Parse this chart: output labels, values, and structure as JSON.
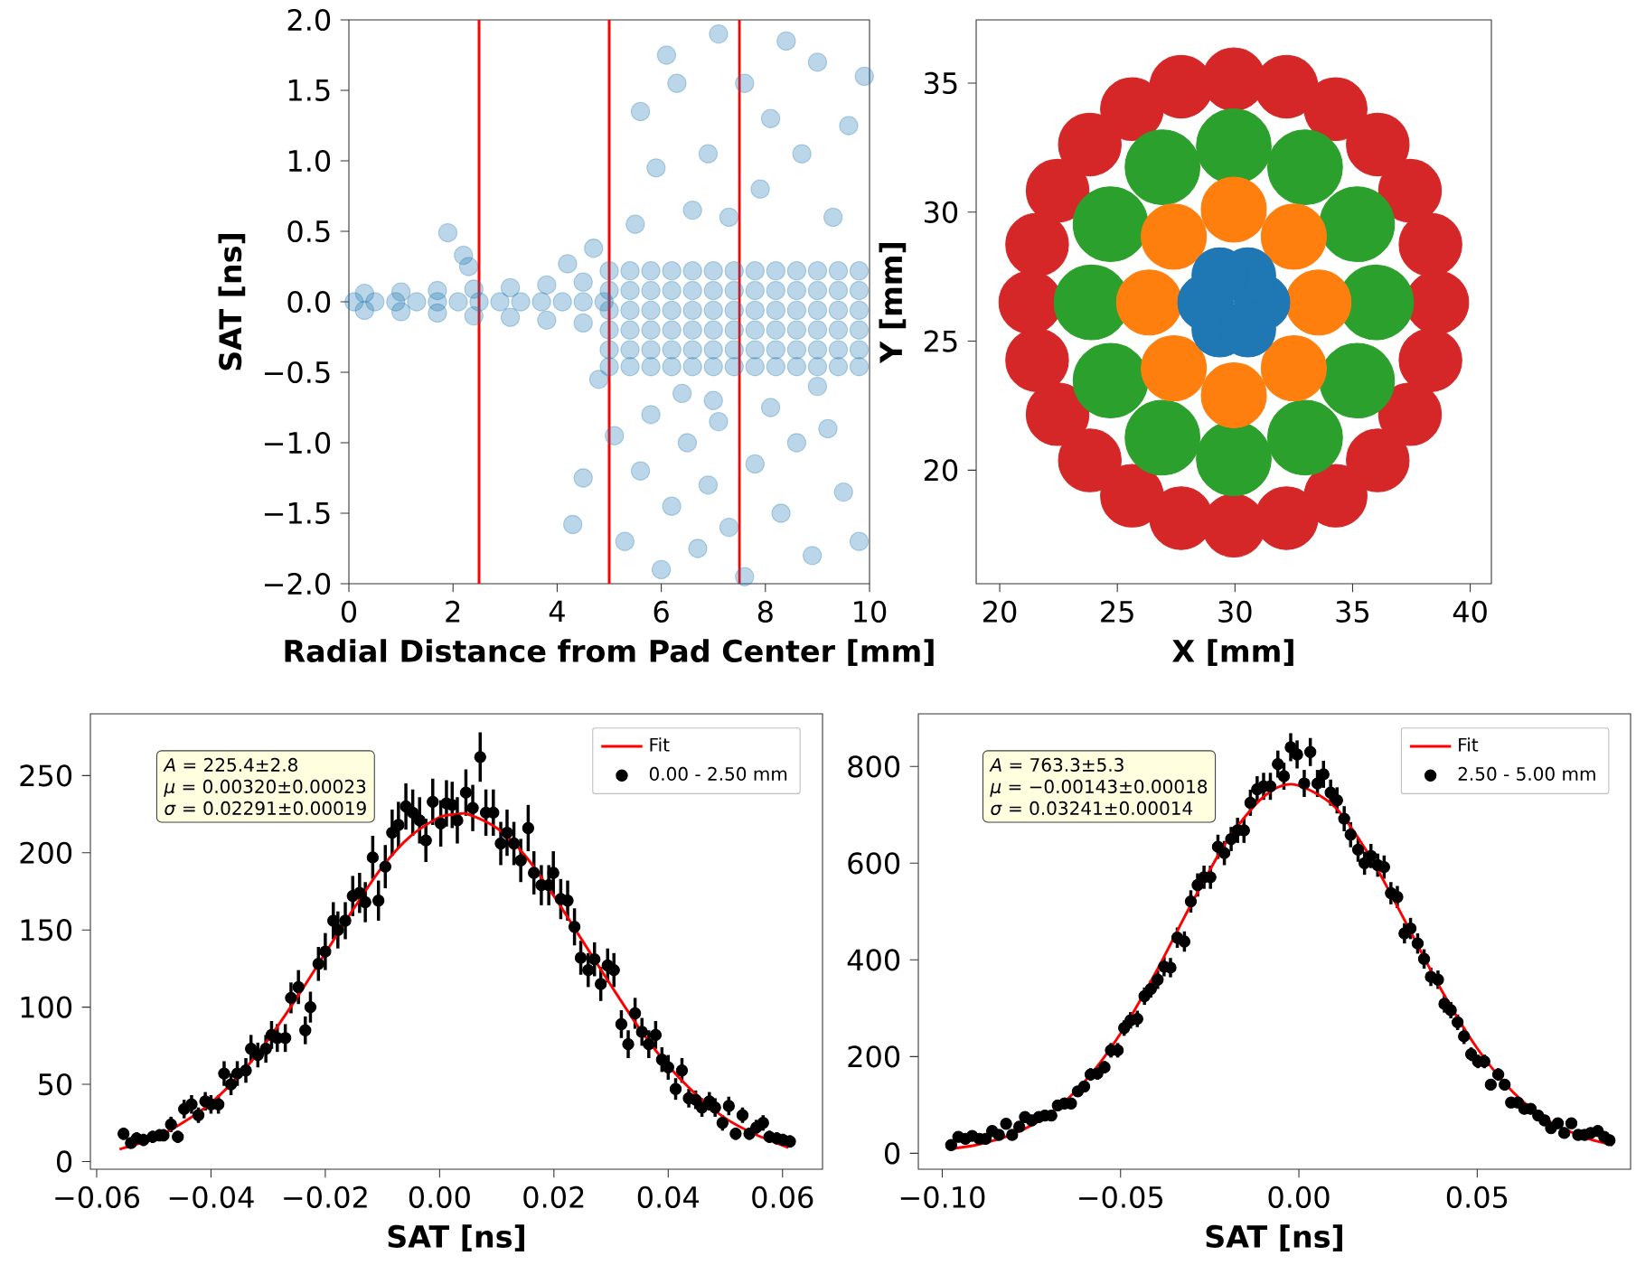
{
  "chart_data": [
    {
      "type": "scatter",
      "xlabel": "Radial Distance from Pad Center [mm]",
      "ylabel": "SAT [ns]",
      "marker": "circle",
      "xlim": [
        0,
        10
      ],
      "ylim": [
        -2,
        2
      ],
      "xticks": [
        0,
        2,
        4,
        6,
        8,
        10
      ],
      "yticks": [
        {
          "value": -2,
          "label": "−2.0"
        },
        {
          "value": -1.5,
          "label": "−1.5"
        },
        {
          "value": -1,
          "label": "−1.0"
        },
        {
          "value": -0.5,
          "label": "−0.5"
        },
        {
          "value": 0,
          "label": "0.0"
        },
        {
          "value": 0.5,
          "label": "0.5"
        },
        {
          "value": 1,
          "label": "1.0"
        },
        {
          "value": 1.5,
          "label": "1.5"
        },
        {
          "value": 2,
          "label": "2.0"
        }
      ],
      "ref_lines": [
        {
          "axis": "x",
          "value": 2.5,
          "color": "#ff0000"
        },
        {
          "axis": "x",
          "value": 5,
          "color": "#ff0000"
        },
        {
          "axis": "x",
          "value": 7.5,
          "color": "#ff0000"
        }
      ],
      "series": [
        {
          "color": "#1f77b4",
          "x": [
            0.1,
            0.5,
            0.9,
            1.3,
            1.7,
            2.1,
            2.5,
            2.9,
            3.3,
            3.7,
            4.1,
            4.5,
            4.9,
            0.3,
            1.0,
            1.7,
            2.4,
            3.1,
            3.8,
            4.5,
            0.3,
            1.0,
            1.7,
            2.4,
            3.1,
            3.8,
            4.5,
            1.9,
            2.3,
            2.2,
            4.2,
            4.7,
            4.3,
            4.5,
            4.8,
            5.0,
            5.4,
            5.8,
            6.2,
            6.6,
            7.0,
            7.4,
            7.8,
            8.2,
            8.6,
            9.0,
            9.4,
            9.8,
            5.0,
            5.4,
            5.8,
            6.2,
            6.6,
            7.0,
            7.4,
            7.8,
            8.2,
            8.6,
            9.0,
            9.4,
            9.8,
            5.0,
            5.4,
            5.8,
            6.2,
            6.6,
            7.0,
            7.4,
            7.8,
            8.2,
            8.6,
            9.0,
            9.4,
            9.8,
            5.0,
            5.4,
            5.8,
            6.2,
            6.6,
            7.0,
            7.4,
            7.8,
            8.2,
            8.6,
            9.0,
            9.4,
            9.8,
            5.0,
            5.4,
            5.8,
            6.2,
            6.6,
            7.0,
            7.4,
            7.8,
            8.2,
            8.6,
            9.0,
            9.4,
            9.8,
            5.0,
            5.4,
            5.8,
            6.2,
            6.6,
            7.0,
            7.4,
            7.8,
            8.2,
            8.6,
            9.0,
            9.4,
            9.8,
            5.5,
            5.6,
            5.9,
            6.1,
            6.3,
            6.6,
            6.9,
            7.1,
            7.3,
            7.6,
            7.9,
            8.1,
            8.4,
            8.7,
            9.0,
            9.3,
            9.6,
            9.9,
            5.1,
            5.3,
            5.6,
            5.8,
            6.0,
            6.2,
            6.5,
            6.7,
            6.9,
            7.1,
            7.3,
            7.6,
            7.8,
            8.1,
            8.3,
            8.6,
            8.9,
            9.2,
            9.5,
            9.8,
            6.4,
            7.0,
            9.0
          ],
          "values": [
            0,
            0,
            0,
            0,
            0,
            0,
            0,
            0,
            0,
            0,
            0,
            0,
            0,
            0.06,
            0.07,
            0.08,
            0.09,
            0.1,
            0.12,
            0.14,
            -0.06,
            -0.07,
            -0.08,
            -0.1,
            -0.11,
            -0.13,
            -0.15,
            0.49,
            0.25,
            0.33,
            0.27,
            0.38,
            -1.58,
            -1.25,
            -0.55,
            0.22,
            0.22,
            0.22,
            0.22,
            0.22,
            0.22,
            0.22,
            0.22,
            0.22,
            0.22,
            0.22,
            0.22,
            0.22,
            0.08,
            0.08,
            0.08,
            0.08,
            0.08,
            0.08,
            0.08,
            0.08,
            0.08,
            0.08,
            0.08,
            0.08,
            0.08,
            -0.06,
            -0.06,
            -0.06,
            -0.06,
            -0.06,
            -0.06,
            -0.06,
            -0.06,
            -0.06,
            -0.06,
            -0.06,
            -0.06,
            -0.06,
            -0.2,
            -0.2,
            -0.2,
            -0.2,
            -0.2,
            -0.2,
            -0.2,
            -0.2,
            -0.2,
            -0.2,
            -0.2,
            -0.2,
            -0.2,
            -0.34,
            -0.34,
            -0.34,
            -0.34,
            -0.34,
            -0.34,
            -0.34,
            -0.34,
            -0.34,
            -0.34,
            -0.34,
            -0.34,
            -0.34,
            -0.46,
            -0.46,
            -0.46,
            -0.46,
            -0.46,
            -0.46,
            -0.46,
            -0.46,
            -0.46,
            -0.46,
            -0.46,
            -0.46,
            -0.46,
            0.55,
            1.35,
            0.95,
            1.75,
            1.55,
            0.65,
            1.05,
            1.9,
            0.6,
            1.55,
            0.8,
            1.3,
            1.85,
            1.05,
            1.7,
            0.6,
            1.25,
            1.6,
            -0.95,
            -1.7,
            -1.2,
            -0.8,
            -1.9,
            -1.45,
            -1.0,
            -1.75,
            -1.3,
            -0.85,
            -1.6,
            -1.95,
            -1.15,
            -0.75,
            -1.5,
            -1.0,
            -1.8,
            -0.9,
            -1.35,
            -1.7,
            -0.65,
            -0.7,
            -0.6
          ]
        }
      ]
    },
    {
      "type": "scatter",
      "xlabel": "X [mm]",
      "ylabel": "Y [mm]",
      "marker": "circle",
      "xlim": [
        19.0,
        40.9
      ],
      "ylim": [
        15.6,
        37.45
      ],
      "xticks": [
        20,
        25,
        30,
        35,
        40
      ],
      "yticks": [
        20,
        25,
        30,
        35
      ],
      "series": [
        {
          "color": "#d62728",
          "x": [
            38.6,
            38.31,
            37.44,
            36.07,
            34.28,
            32.19,
            29.95,
            27.71,
            25.62,
            23.83,
            22.46,
            21.59,
            21.3,
            21.59,
            22.46,
            23.83,
            25.62,
            27.71,
            29.95,
            32.19,
            34.28,
            36.07,
            37.44,
            38.31
          ],
          "values": [
            26.5,
            28.74,
            30.83,
            32.62,
            33.99,
            34.86,
            35.15,
            34.86,
            33.99,
            32.62,
            30.83,
            28.74,
            26.5,
            24.26,
            22.17,
            20.38,
            19.01,
            18.14,
            17.85,
            18.14,
            19.01,
            20.38,
            22.17,
            24.26
          ]
        },
        {
          "color": "#2ca02c",
          "x": [
            36.0,
            35.19,
            32.98,
            29.95,
            26.92,
            24.71,
            23.9,
            24.71,
            26.92,
            29.95,
            32.98,
            35.19
          ],
          "values": [
            26.5,
            29.53,
            31.74,
            32.55,
            31.74,
            29.53,
            26.5,
            23.47,
            21.26,
            20.45,
            21.26,
            23.47
          ]
        },
        {
          "color": "#ff7f0e",
          "x": [
            33.55,
            32.5,
            29.95,
            27.4,
            26.35,
            27.4,
            29.95,
            32.5
          ],
          "values": [
            26.5,
            29.05,
            30.1,
            29.05,
            26.5,
            23.95,
            22.9,
            23.95
          ]
        },
        {
          "color": "#1f77b4",
          "x": [
            31.15,
            30.55,
            29.35,
            28.75,
            29.35,
            30.55
          ],
          "values": [
            26.5,
            27.54,
            27.54,
            26.5,
            25.46,
            25.46
          ]
        }
      ]
    },
    {
      "type": "scatter",
      "xlabel": "SAT [ns]",
      "legend": "top right",
      "xlim": [
        -0.0611,
        0.067
      ],
      "ylim": [
        -5,
        290
      ],
      "xticks": [
        {
          "value": -0.06,
          "label": "−0.06"
        },
        {
          "value": -0.04,
          "label": "−0.04"
        },
        {
          "value": -0.02,
          "label": "−0.02"
        },
        {
          "value": 0,
          "label": "0.00"
        },
        {
          "value": 0.02,
          "label": "0.02"
        },
        {
          "value": 0.04,
          "label": "0.04"
        },
        {
          "value": 0.06,
          "label": "0.06"
        }
      ],
      "yticks": [
        0,
        50,
        100,
        150,
        200,
        250
      ],
      "annotations": [
        "*A* = 225.4±2.8",
        "*μ* = 0.00320±0.00023",
        "*σ* = 0.02291±0.00019"
      ],
      "series": [
        {
          "name": "Fit",
          "type": "line",
          "color": "#ff0000",
          "x": [
            -0.056,
            -0.05,
            -0.045,
            -0.04,
            -0.035,
            -0.03,
            -0.025,
            -0.02,
            -0.015,
            -0.01,
            -0.005,
            0,
            0.0032,
            0.005,
            0.01,
            0.015,
            0.02,
            0.025,
            0.03,
            0.035,
            0.04,
            0.045,
            0.05,
            0.055,
            0.061
          ],
          "values": [
            8,
            15,
            25,
            38,
            56,
            79,
            106,
            135,
            164,
            191,
            211,
            223,
            225,
            225,
            216,
            198,
            172,
            143,
            114,
            86,
            62,
            43,
            28,
            18,
            9
          ]
        },
        {
          "name": "0.00 - 2.50 mm",
          "color": "#000000",
          "marker": "circle",
          "x": [
            -0.0553,
            -0.054,
            -0.053,
            -0.0518,
            -0.0502,
            -0.049,
            -0.0483,
            -0.047,
            -0.0458,
            -0.0447,
            -0.0434,
            -0.0422,
            -0.041,
            -0.04,
            -0.0387,
            -0.0377,
            -0.0365,
            -0.0354,
            -0.0339,
            -0.033,
            -0.0318,
            -0.0304,
            -0.0294,
            -0.0284,
            -0.027,
            -0.026,
            -0.0247,
            -0.0235,
            -0.0226,
            -0.0212,
            -0.02,
            -0.0186,
            -0.0178,
            -0.0165,
            -0.0152,
            -0.014,
            -0.013,
            -0.0117,
            -0.0107,
            -0.0095,
            -0.0083,
            -0.0072,
            -0.0059,
            -0.0047,
            -0.0035,
            -0.0024,
            -0.0012,
            0.0002,
            0.0012,
            0.0022,
            0.0031,
            0.0046,
            0.0058,
            0.0071,
            0.0081,
            0.0094,
            0.0107,
            0.0118,
            0.013,
            0.0142,
            0.0155,
            0.0165,
            0.0178,
            0.0191,
            0.0199,
            0.0212,
            0.0224,
            0.0236,
            0.0247,
            0.026,
            0.0271,
            0.0282,
            0.0294,
            0.0305,
            0.0318,
            0.033,
            0.0342,
            0.0354,
            0.0366,
            0.0378,
            0.0389,
            0.04,
            0.0413,
            0.0424,
            0.0436,
            0.0448,
            0.0459,
            0.0472,
            0.0482,
            0.0495,
            0.0506,
            0.0518,
            0.053,
            0.0542,
            0.0554,
            0.0566,
            0.0577,
            0.059,
            0.0601,
            0.0613
          ],
          "values": [
            18,
            12,
            15,
            14,
            16,
            17,
            17,
            24,
            16,
            34,
            37,
            30,
            39,
            37,
            37,
            57,
            50,
            57,
            59,
            73,
            69,
            73,
            82,
            80,
            80,
            106,
            113,
            85,
            100,
            128,
            136,
            156,
            150,
            156,
            172,
            174,
            168,
            197,
            169,
            191,
            213,
            218,
            230,
            226,
            221,
            208,
            233,
            219,
            232,
            231,
            221,
            239,
            229,
            262,
            226,
            226,
            206,
            213,
            206,
            195,
            216,
            187,
            179,
            179,
            187,
            170,
            169,
            152,
            132,
            124,
            131,
            115,
            127,
            124,
            89,
            76,
            96,
            84,
            76,
            82,
            66,
            61,
            47,
            59,
            41,
            40,
            35,
            39,
            35,
            25,
            36,
            18,
            30,
            18,
            22,
            25,
            16,
            15,
            14,
            13
          ],
          "errors": [
            4,
            3,
            4,
            4,
            4,
            4,
            4,
            5,
            4,
            6,
            6,
            5,
            6,
            6,
            6,
            8,
            7,
            8,
            8,
            9,
            8,
            9,
            9,
            9,
            9,
            10,
            11,
            9,
            10,
            11,
            12,
            12,
            12,
            12,
            13,
            13,
            13,
            14,
            13,
            14,
            15,
            15,
            15,
            15,
            15,
            14,
            15,
            15,
            15,
            15,
            15,
            15,
            15,
            16,
            15,
            15,
            14,
            15,
            14,
            14,
            15,
            14,
            13,
            13,
            14,
            13,
            13,
            12,
            11,
            11,
            11,
            11,
            11,
            11,
            9,
            9,
            10,
            9,
            9,
            9,
            8,
            8,
            7,
            8,
            6,
            6,
            6,
            6,
            6,
            5,
            6,
            4,
            5,
            4,
            5,
            5,
            4,
            4,
            4,
            4
          ]
        }
      ]
    },
    {
      "type": "scatter",
      "xlabel": "SAT [ns]",
      "legend": "top right",
      "xlim": [
        -0.1067,
        0.093
      ],
      "ylim": [
        -33,
        909
      ],
      "xticks": [
        {
          "value": -0.1,
          "label": "−0.10"
        },
        {
          "value": -0.05,
          "label": "−0.05"
        },
        {
          "value": 0,
          "label": "0.00"
        },
        {
          "value": 0.05,
          "label": "0.05"
        }
      ],
      "yticks": [
        0,
        200,
        400,
        600,
        800
      ],
      "annotations": [
        "*A* = 763.3±5.3",
        "*μ* = −0.00143±0.00018",
        "*σ* = 0.03241±0.00014"
      ],
      "series": [
        {
          "name": "Fit",
          "type": "line",
          "color": "#ff0000",
          "x": [
            -0.098,
            -0.09,
            -0.08,
            -0.07,
            -0.06,
            -0.05,
            -0.04,
            -0.03,
            -0.02,
            -0.01,
            -0.00143,
            0.01,
            0.02,
            0.03,
            0.04,
            0.05,
            0.06,
            0.07,
            0.08,
            0.088
          ],
          "values": [
            9,
            18,
            40,
            81,
            149,
            248,
            376,
            518,
            648,
            737,
            763,
            717,
            613,
            477,
            337,
            217,
            127,
            67,
            33,
            17
          ]
        },
        {
          "name": "2.50 - 5.00 mm",
          "color": "#000000",
          "marker": "circle",
          "x": [
            -0.0975,
            -0.0955,
            -0.0935,
            -0.0916,
            -0.0896,
            -0.0878,
            -0.086,
            -0.0841,
            -0.0821,
            -0.0804,
            -0.0784,
            -0.0768,
            -0.0749,
            -0.0729,
            -0.0712,
            -0.0694,
            -0.0676,
            -0.0657,
            -0.0639,
            -0.062,
            -0.0602,
            -0.0584,
            -0.0565,
            -0.0545,
            -0.0527,
            -0.0508,
            -0.049,
            -0.0472,
            -0.0453,
            -0.0433,
            -0.0415,
            -0.0396,
            -0.0378,
            -0.036,
            -0.0341,
            -0.0321,
            -0.0303,
            -0.0284,
            -0.0266,
            -0.0248,
            -0.0227,
            -0.0209,
            -0.019,
            -0.0172,
            -0.0154,
            -0.0136,
            -0.0117,
            -0.0099,
            -0.008,
            -0.0059,
            -0.0042,
            -0.0023,
            -0.0005,
            0.0015,
            0.0032,
            0.0052,
            0.0069,
            0.0089,
            0.0107,
            0.0127,
            0.0145,
            0.0166,
            0.0184,
            0.0202,
            0.0221,
            0.0239,
            0.0258,
            0.0276,
            0.0296,
            0.0313,
            0.0333,
            0.0351,
            0.037,
            0.039,
            0.0408,
            0.0426,
            0.0445,
            0.0463,
            0.0483,
            0.0502,
            0.052,
            0.0538,
            0.0559,
            0.0577,
            0.0595,
            0.0614,
            0.0632,
            0.065,
            0.0671,
            0.0689,
            0.0707,
            0.0726,
            0.0744,
            0.0764,
            0.0783,
            0.0801,
            0.0818,
            0.0838,
            0.0856,
            0.0871
          ],
          "values": [
            17,
            34,
            30,
            36,
            30,
            30,
            46,
            38,
            61,
            38,
            55,
            75,
            68,
            75,
            78,
            78,
            99,
            103,
            103,
            128,
            138,
            163,
            165,
            178,
            213,
            213,
            259,
            275,
            278,
            325,
            340,
            359,
            386,
            384,
            446,
            438,
            521,
            555,
            571,
            571,
            634,
            621,
            650,
            668,
            668,
            725,
            753,
            759,
            759,
            805,
            780,
            840,
            825,
            765,
            830,
            765,
            784,
            746,
            730,
            692,
            659,
            628,
            600,
            615,
            596,
            592,
            538,
            530,
            455,
            465,
            434,
            402,
            365,
            359,
            309,
            296,
            271,
            242,
            205,
            190,
            190,
            142,
            163,
            142,
            105,
            105,
            92,
            92,
            78,
            68,
            52,
            62,
            42,
            62,
            38,
            38,
            42,
            46,
            34,
            27
          ],
          "errors": [
            4,
            6,
            5,
            6,
            5,
            5,
            7,
            6,
            8,
            6,
            7,
            9,
            8,
            9,
            9,
            9,
            10,
            10,
            10,
            11,
            12,
            13,
            13,
            13,
            15,
            15,
            16,
            17,
            17,
            18,
            18,
            19,
            20,
            20,
            21,
            21,
            23,
            24,
            24,
            24,
            25,
            25,
            25,
            26,
            26,
            27,
            27,
            28,
            28,
            28,
            28,
            29,
            29,
            28,
            29,
            28,
            28,
            27,
            27,
            26,
            26,
            25,
            24,
            25,
            24,
            24,
            23,
            23,
            21,
            22,
            21,
            20,
            19,
            19,
            18,
            17,
            16,
            16,
            14,
            14,
            14,
            12,
            13,
            12,
            10,
            10,
            10,
            10,
            9,
            8,
            7,
            8,
            6,
            8,
            6,
            6,
            6,
            7,
            6,
            5
          ]
        }
      ]
    }
  ]
}
